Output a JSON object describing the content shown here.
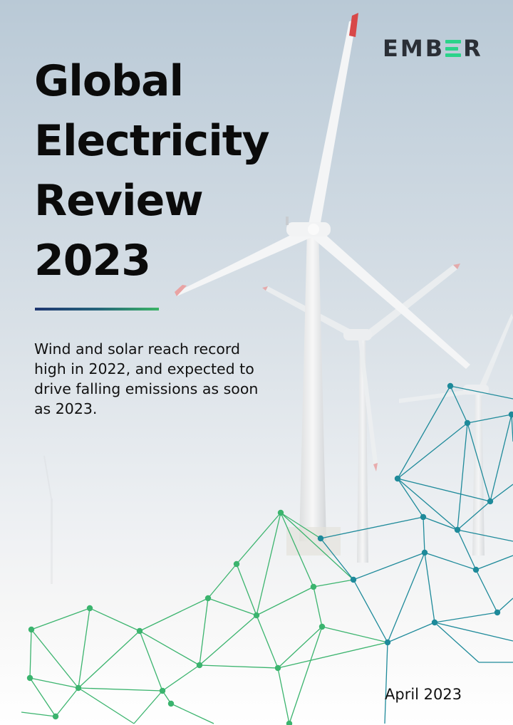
{
  "brand": {
    "logo_prefix": "EMB",
    "logo_suffix": "R",
    "logo_text": "EMBER"
  },
  "title_lines": [
    "Global",
    "Electricity",
    "Review",
    "2023"
  ],
  "subtitle": "Wind and solar reach record high in 2022, and expected to drive falling emissions as soon as 2023.",
  "date": "April 2023",
  "colors": {
    "logo_text": "#2b2f36",
    "logo_accent": "#2bd38a",
    "title": "#0b0b0b",
    "divider_start": "#1e3670",
    "divider_end": "#3bb466",
    "network_green": "#3bb46e",
    "network_teal": "#1e8a9a"
  },
  "illustration": {
    "background": "photo of offshore wind turbines against hazy sky",
    "overlay": "connected node network graphic in green and teal"
  }
}
